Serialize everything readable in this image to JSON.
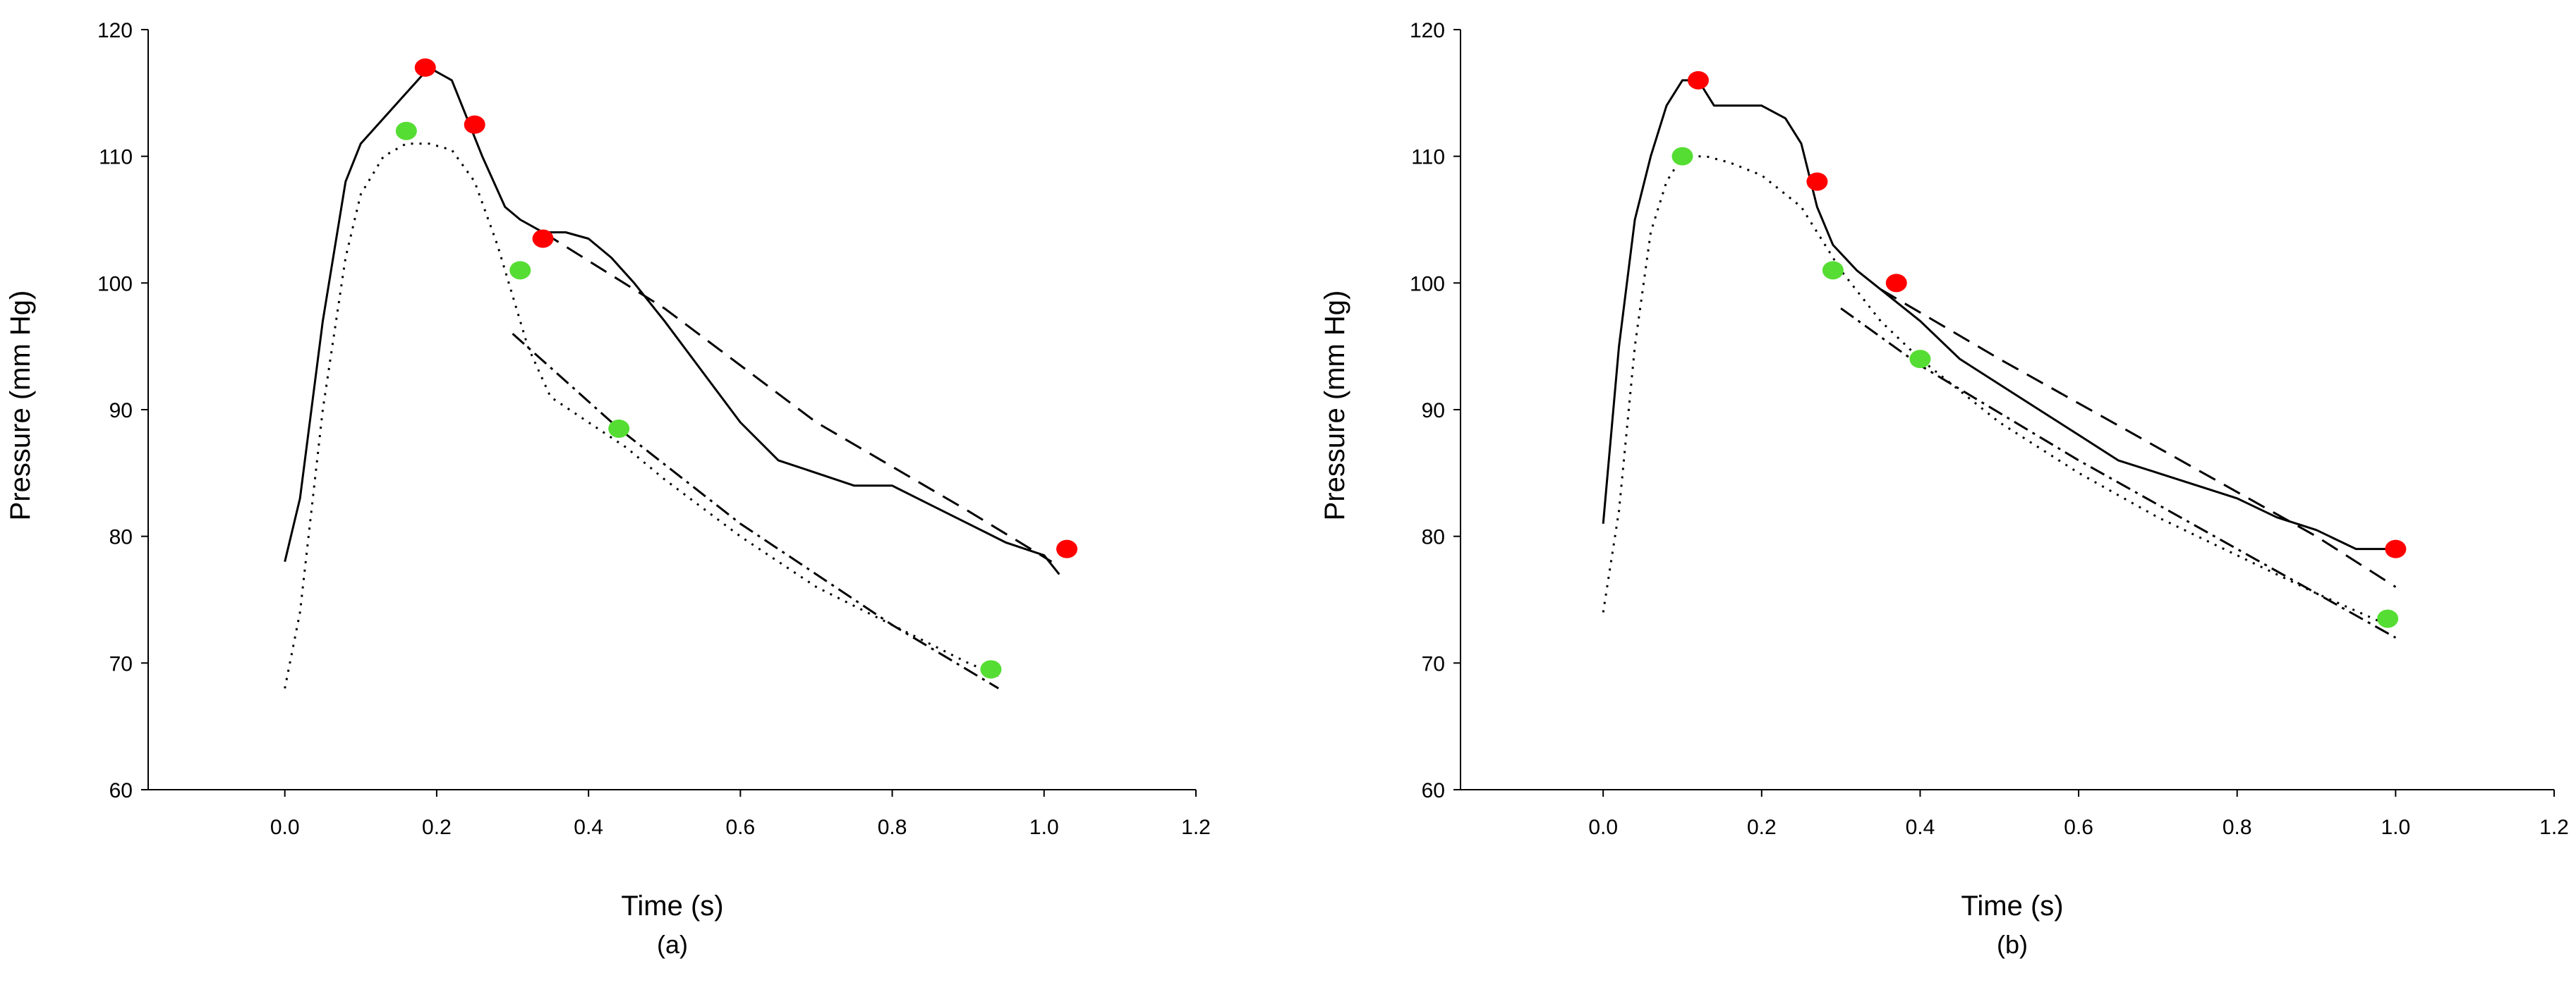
{
  "colors": {
    "red_marker": "#ff0000",
    "green_marker": "#55dd33",
    "line": "#000000"
  },
  "chart_data": [
    {
      "type": "line",
      "panel_label": "(a)",
      "xlabel": "Time (s)",
      "ylabel": "Pressure (mm Hg)",
      "xlim": [
        -0.18,
        1.2
      ],
      "ylim": [
        60,
        120
      ],
      "xticks": [
        0.0,
        0.2,
        0.4,
        0.6,
        0.8,
        1.0,
        1.2
      ],
      "xtick_labels": [
        "0.0",
        "0.2",
        "0.4",
        "0.6",
        "0.8",
        "1.0",
        "1.2"
      ],
      "yticks": [
        60,
        70,
        80,
        90,
        100,
        110,
        120
      ],
      "ytick_labels": [
        "60",
        "70",
        "80",
        "90",
        "100",
        "110",
        "120"
      ],
      "series": [
        {
          "style": "solid",
          "x": [
            0.0,
            0.02,
            0.05,
            0.08,
            0.1,
            0.13,
            0.16,
            0.19,
            0.22,
            0.24,
            0.26,
            0.29,
            0.31,
            0.34,
            0.37,
            0.4,
            0.43,
            0.46,
            0.5,
            0.55,
            0.6,
            0.65,
            0.7,
            0.75,
            0.8,
            0.85,
            0.9,
            0.95,
            1.0,
            1.02
          ],
          "y": [
            78,
            83,
            97,
            108,
            111,
            113,
            115,
            117,
            116,
            113,
            110,
            106,
            105,
            104,
            104,
            103.5,
            102,
            100,
            97,
            93,
            89,
            86,
            85,
            84,
            84,
            82.5,
            81,
            79.5,
            78.5,
            77
          ]
        },
        {
          "style": "dotted",
          "x": [
            0.0,
            0.02,
            0.05,
            0.08,
            0.1,
            0.13,
            0.16,
            0.19,
            0.22,
            0.25,
            0.28,
            0.3,
            0.32,
            0.35,
            0.4,
            0.45,
            0.5,
            0.6,
            0.7,
            0.8,
            0.9,
            0.94
          ],
          "y": [
            68,
            74,
            90,
            102,
            107,
            110,
            111,
            111,
            110.5,
            108,
            103,
            99,
            95,
            91,
            89,
            87,
            84.5,
            80,
            76,
            73,
            70,
            69
          ]
        },
        {
          "style": "dash-dot",
          "x": [
            0.3,
            0.44,
            0.6,
            0.8,
            0.94
          ],
          "y": [
            96,
            88.5,
            81,
            73,
            68
          ]
        },
        {
          "style": "dashed",
          "x": [
            0.34,
            0.5,
            0.7,
            0.9,
            1.01
          ],
          "y": [
            104,
            98,
            89,
            82,
            78
          ]
        }
      ],
      "red_points": [
        {
          "x": 0.185,
          "y": 117
        },
        {
          "x": 0.25,
          "y": 112.5
        },
        {
          "x": 0.34,
          "y": 103.5
        },
        {
          "x": 1.03,
          "y": 79
        }
      ],
      "green_points": [
        {
          "x": 0.16,
          "y": 112
        },
        {
          "x": 0.31,
          "y": 101
        },
        {
          "x": 0.44,
          "y": 88.5
        },
        {
          "x": 0.93,
          "y": 69.5
        }
      ]
    },
    {
      "type": "line",
      "panel_label": "(b)",
      "xlabel": "Time (s)",
      "ylabel": "Pressure (mm Hg)",
      "xlim": [
        -0.18,
        1.2
      ],
      "ylim": [
        60,
        120
      ],
      "xticks": [
        0.0,
        0.2,
        0.4,
        0.6,
        0.8,
        1.0,
        1.2
      ],
      "xtick_labels": [
        "0.0",
        "0.2",
        "0.4",
        "0.6",
        "0.8",
        "1.0",
        "1.2"
      ],
      "yticks": [
        60,
        70,
        80,
        90,
        100,
        110,
        120
      ],
      "ytick_labels": [
        "60",
        "70",
        "80",
        "90",
        "100",
        "110",
        "120"
      ],
      "series": [
        {
          "style": "solid",
          "x": [
            0.0,
            0.02,
            0.04,
            0.06,
            0.08,
            0.1,
            0.12,
            0.14,
            0.17,
            0.2,
            0.23,
            0.25,
            0.27,
            0.29,
            0.32,
            0.35,
            0.4,
            0.45,
            0.5,
            0.55,
            0.6,
            0.65,
            0.7,
            0.75,
            0.8,
            0.85,
            0.9,
            0.95,
            1.0
          ],
          "y": [
            81,
            95,
            105,
            110,
            114,
            116,
            116,
            114,
            114,
            114,
            113,
            111,
            106,
            103,
            101,
            99.5,
            97,
            94,
            92,
            90,
            88,
            86,
            85,
            84,
            83,
            81.5,
            80.5,
            79,
            79
          ]
        },
        {
          "style": "dotted",
          "x": [
            0.0,
            0.02,
            0.04,
            0.06,
            0.08,
            0.1,
            0.13,
            0.16,
            0.2,
            0.25,
            0.28,
            0.3,
            0.35,
            0.4,
            0.5,
            0.6,
            0.7,
            0.8,
            0.9,
            0.99
          ],
          "y": [
            74,
            82,
            95,
            104,
            108,
            110,
            110,
            109.5,
            108.5,
            106,
            103,
            101,
            97,
            94,
            89,
            85,
            81.5,
            78.5,
            75.5,
            73
          ]
        },
        {
          "style": "dash-dot",
          "x": [
            0.3,
            0.4,
            0.6,
            0.8,
            1.0
          ],
          "y": [
            98,
            93.5,
            86,
            79,
            72
          ]
        },
        {
          "style": "dashed",
          "x": [
            0.35,
            0.5,
            0.7,
            0.9,
            1.0
          ],
          "y": [
            99.5,
            94,
            87,
            80,
            76
          ]
        }
      ],
      "red_points": [
        {
          "x": 0.12,
          "y": 116
        },
        {
          "x": 0.27,
          "y": 108
        },
        {
          "x": 0.37,
          "y": 100
        },
        {
          "x": 1.0,
          "y": 79
        }
      ],
      "green_points": [
        {
          "x": 0.1,
          "y": 110
        },
        {
          "x": 0.29,
          "y": 101
        },
        {
          "x": 0.4,
          "y": 94
        },
        {
          "x": 0.99,
          "y": 73.5
        }
      ]
    }
  ]
}
